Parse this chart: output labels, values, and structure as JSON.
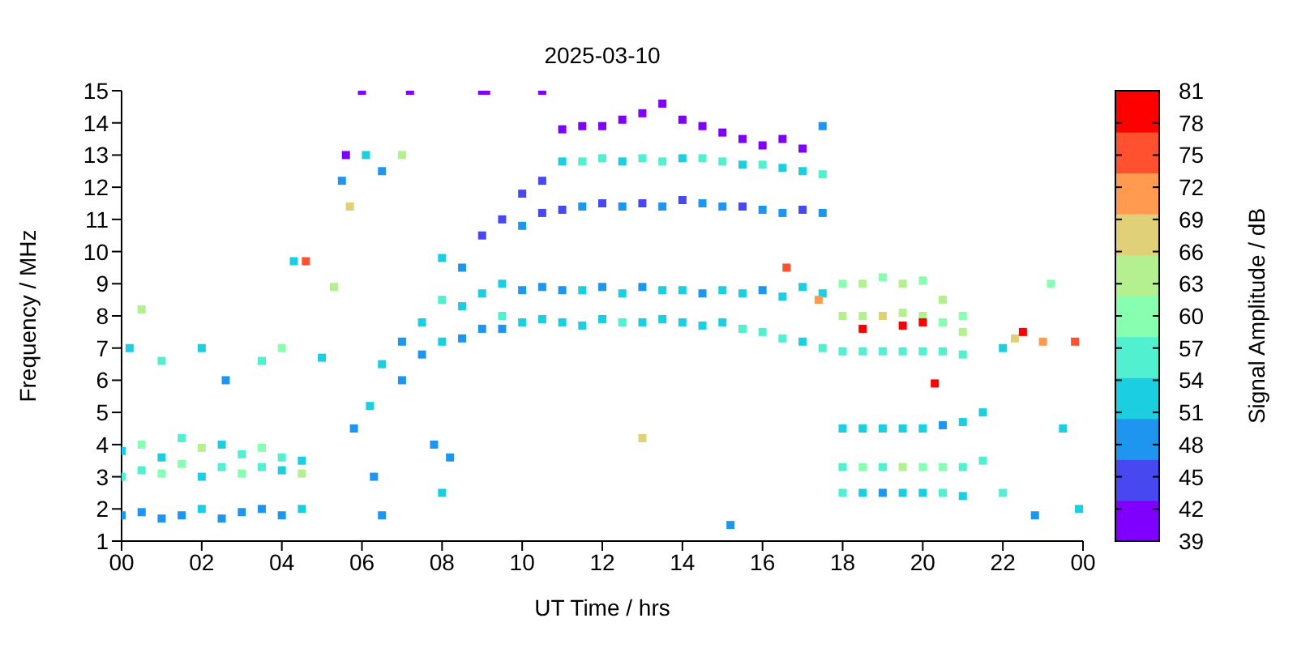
{
  "chart_data": {
    "type": "scatter",
    "title": "2025-03-10",
    "xlabel": "UT Time / hrs",
    "ylabel": "Frequency / MHz",
    "clabel": "Signal Amplitude / dB",
    "xlim": [
      0,
      24
    ],
    "xticks": [
      {
        "value": 0,
        "label": "00"
      },
      {
        "value": 2,
        "label": "02"
      },
      {
        "value": 4,
        "label": "04"
      },
      {
        "value": 6,
        "label": "06"
      },
      {
        "value": 8,
        "label": "08"
      },
      {
        "value": 10,
        "label": "10"
      },
      {
        "value": 12,
        "label": "12"
      },
      {
        "value": 14,
        "label": "14"
      },
      {
        "value": 16,
        "label": "16"
      },
      {
        "value": 18,
        "label": "18"
      },
      {
        "value": 20,
        "label": "20"
      },
      {
        "value": 22,
        "label": "22"
      },
      {
        "value": 24,
        "label": "00"
      }
    ],
    "ylim": [
      1,
      15
    ],
    "yticks": [
      1,
      2,
      3,
      4,
      5,
      6,
      7,
      8,
      9,
      10,
      11,
      12,
      13,
      14,
      15
    ],
    "clim": [
      39,
      81
    ],
    "cticks": [
      39,
      42,
      45,
      48,
      51,
      54,
      57,
      60,
      63,
      66,
      69,
      72,
      75,
      78,
      81
    ],
    "grid": false,
    "legend": false,
    "marker": "square",
    "x": [
      0,
      0,
      0,
      0.5,
      0.5,
      0.5,
      1,
      1,
      1,
      1.5,
      1.5,
      1.5,
      2,
      2,
      2,
      2.5,
      2.5,
      2.5,
      3,
      3,
      3,
      3.5,
      3.5,
      3.5,
      4,
      4,
      4,
      4.5,
      4.5,
      4.5,
      0.2,
      0.5,
      1,
      2,
      2.6,
      3.5,
      4,
      4.3,
      4.6,
      5,
      5.3,
      5.5,
      5.6,
      5.7,
      6.1,
      6.5,
      7,
      7.2,
      6,
      9,
      9.1,
      5.8,
      6.2,
      6.5,
      7,
      7,
      7.5,
      7.5,
      8,
      8,
      8,
      8.5,
      8.5,
      8.5,
      9,
      9,
      9,
      9.5,
      9.5,
      9.5,
      9.5,
      7.8,
      8.2,
      8,
      6.3,
      6.5,
      10,
      10,
      10,
      10,
      10.5,
      10.5,
      10.5,
      10.5,
      11,
      11,
      11,
      11,
      11,
      11.5,
      11.5,
      11.5,
      11.5,
      11.5,
      12,
      12,
      12,
      12,
      12,
      12.5,
      12.5,
      12.5,
      12.5,
      12.5,
      13,
      13,
      13,
      13,
      13,
      13.5,
      13.5,
      13.5,
      13.5,
      13.5,
      14,
      14,
      14,
      14,
      14,
      14.5,
      14.5,
      14.5,
      14.5,
      14.5,
      15,
      15,
      15,
      15,
      15,
      15.5,
      15.5,
      15.5,
      15.5,
      15.5,
      16,
      16,
      16,
      16,
      16,
      16.5,
      16.5,
      16.5,
      16.5,
      16.5,
      17,
      17,
      17,
      17,
      17,
      17.5,
      17.5,
      17.5,
      17.5,
      17.5,
      18,
      18,
      18,
      18,
      18,
      18,
      18.5,
      18.5,
      18.5,
      18.5,
      18.5,
      18.5,
      19,
      19,
      19,
      19,
      19,
      19,
      19.5,
      19.5,
      19.5,
      19.5,
      19.5,
      19.5,
      20,
      20,
      20,
      20,
      20,
      20,
      20.5,
      20.5,
      20.5,
      20.5,
      20.5,
      20.5,
      21,
      21,
      21,
      21,
      21,
      21,
      18.5,
      19.5,
      20,
      20.3,
      16.6,
      17.4,
      21.5,
      21.5,
      22,
      22,
      22.3,
      22.5,
      23,
      23.2,
      23.5,
      23.8,
      23.9,
      22.8,
      15.2,
      13,
      10.5
    ],
    "values": [
      1.8,
      3,
      3.8,
      1.9,
      3.2,
      4,
      1.7,
      3.1,
      3.6,
      1.8,
      3.4,
      4.2,
      2,
      3,
      3.9,
      1.7,
      3.3,
      4,
      1.9,
      3.1,
      3.7,
      2,
      3.3,
      3.9,
      1.8,
      3.2,
      3.6,
      2,
      3.1,
      3.5,
      7,
      8.2,
      6.6,
      7,
      6,
      6.6,
      7,
      9.7,
      9.7,
      6.7,
      8.9,
      12.2,
      13,
      11.4,
      13,
      12.5,
      13,
      15,
      15,
      15,
      15,
      4.5,
      5.2,
      6.5,
      7.2,
      6,
      7.8,
      6.8,
      8.5,
      7.2,
      9.8,
      8.3,
      9.5,
      7.3,
      10.5,
      8.7,
      7.6,
      11,
      9,
      8,
      7.6,
      4,
      3.6,
      2.5,
      3,
      1.8,
      7.8,
      8.8,
      10.8,
      11.8,
      7.9,
      8.9,
      11.2,
      12.2,
      7.8,
      8.8,
      11.3,
      12.8,
      13.8,
      7.7,
      8.8,
      11.4,
      12.8,
      13.9,
      7.9,
      8.9,
      11.5,
      12.9,
      13.9,
      7.8,
      8.7,
      11.4,
      12.8,
      14.1,
      7.8,
      8.9,
      11.5,
      12.9,
      14.3,
      7.9,
      8.8,
      11.4,
      12.8,
      14.6,
      7.8,
      8.8,
      11.6,
      12.9,
      14.1,
      7.7,
      8.7,
      11.5,
      12.9,
      13.9,
      7.8,
      8.8,
      11.4,
      12.8,
      13.7,
      7.6,
      8.7,
      11.4,
      12.7,
      13.5,
      7.5,
      8.8,
      11.3,
      12.7,
      13.3,
      7.3,
      8.6,
      11.2,
      12.6,
      13.5,
      7.2,
      8.9,
      11.3,
      12.5,
      13.2,
      7,
      8.7,
      11.2,
      12.4,
      13.9,
      2.5,
      3.3,
      4.5,
      6.9,
      8,
      9,
      2.5,
      3.3,
      4.5,
      6.9,
      8,
      9,
      2.5,
      3.3,
      4.5,
      6.9,
      8,
      9.2,
      2.5,
      3.3,
      4.5,
      6.9,
      8.1,
      9,
      2.5,
      3.3,
      4.5,
      6.9,
      8,
      9.1,
      2.5,
      3.3,
      4.6,
      6.9,
      7.8,
      8.5,
      2.4,
      3.3,
      4.7,
      6.8,
      7.5,
      8,
      7.6,
      7.7,
      7.8,
      5.9,
      9.5,
      8.5,
      3.5,
      5,
      2.5,
      7,
      7.3,
      7.5,
      7.2,
      9,
      4.5,
      7.2,
      2,
      1.8,
      1.5,
      4.2,
      15
    ],
    "cvalues": [
      50,
      55,
      53,
      48,
      57,
      61,
      50,
      59,
      52,
      49,
      60,
      56,
      51,
      54,
      62,
      48,
      58,
      53,
      50,
      61,
      55,
      47,
      56,
      60,
      50,
      54,
      58,
      51,
      62,
      53,
      52,
      62,
      55,
      52,
      50,
      58,
      60,
      54,
      76,
      54,
      62,
      47,
      40,
      66,
      52,
      47,
      62,
      40,
      40,
      40,
      40,
      48,
      52,
      52,
      48,
      50,
      52,
      50,
      55,
      52,
      52,
      53,
      50,
      48,
      46,
      52,
      50,
      45,
      52,
      55,
      48,
      48,
      50,
      52,
      48,
      50,
      52,
      50,
      47,
      45,
      52,
      50,
      46,
      44,
      52,
      50,
      46,
      53,
      40,
      53,
      51,
      47,
      55,
      40,
      52,
      50,
      46,
      56,
      40,
      55,
      51,
      47,
      53,
      40,
      52,
      50,
      45,
      55,
      40,
      53,
      52,
      47,
      56,
      40,
      54,
      51,
      46,
      53,
      41,
      53,
      50,
      47,
      55,
      40,
      52,
      51,
      47,
      56,
      40,
      58,
      52,
      46,
      54,
      40,
      55,
      50,
      47,
      55,
      41,
      57,
      53,
      47,
      54,
      40,
      53,
      51,
      46,
      54,
      40,
      55,
      51,
      47,
      56,
      48,
      55,
      58,
      51,
      55,
      63,
      61,
      52,
      60,
      51,
      56,
      64,
      62,
      50,
      58,
      51,
      55,
      66,
      61,
      54,
      62,
      52,
      57,
      63,
      64,
      52,
      59,
      51,
      56,
      62,
      60,
      55,
      60,
      50,
      55,
      61,
      63,
      52,
      57,
      51,
      56,
      64,
      60,
      80,
      79,
      80,
      80,
      76,
      72,
      56,
      52,
      58,
      52,
      67,
      79,
      70,
      60,
      52,
      76,
      52,
      48,
      48,
      66,
      40
    ]
  }
}
